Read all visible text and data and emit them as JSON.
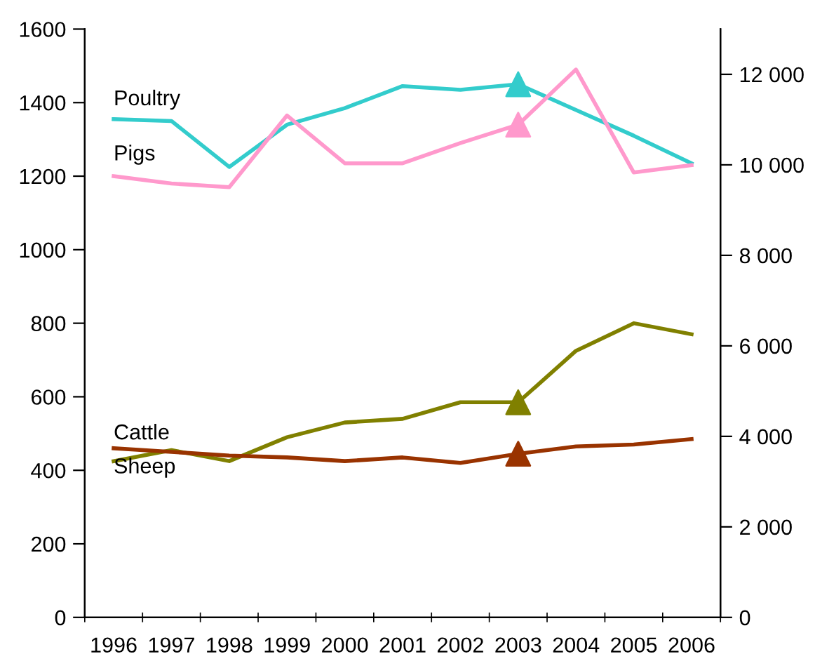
{
  "chart_data": {
    "type": "line",
    "categories": [
      "1996",
      "1997",
      "1998",
      "1999",
      "2000",
      "2001",
      "2002",
      "2003",
      "2004",
      "2005",
      "2006"
    ],
    "ylim": [
      0,
      1600
    ],
    "yticks": [
      0,
      200,
      400,
      600,
      800,
      1000,
      1200,
      1400,
      1600
    ],
    "y2lim": [
      0,
      13000
    ],
    "y2ticks": [
      {
        "value": 0,
        "label": "0"
      },
      {
        "value": 2000,
        "label": "2 000"
      },
      {
        "value": 4000,
        "label": "4 000"
      },
      {
        "value": 6000,
        "label": "6 000"
      },
      {
        "value": 8000,
        "label": "8 000"
      },
      {
        "value": 10000,
        "label": "10 000"
      },
      {
        "value": 12000,
        "label": "12 000"
      }
    ],
    "grid": false,
    "legend": false,
    "line_style": "solid",
    "series": [
      {
        "name": "Poultry",
        "color": "#33cccc",
        "values": [
          1355,
          1350,
          1225,
          1340,
          1385,
          1445,
          1435,
          1450,
          1380,
          1310,
          1235
        ]
      },
      {
        "name": "Pigs",
        "color": "#ff99cc",
        "values": [
          1200,
          1180,
          1170,
          1365,
          1235,
          1235,
          1290,
          1340,
          1490,
          1210,
          1230
        ]
      },
      {
        "name": "Cattle",
        "color": "#808000",
        "values": [
          425,
          455,
          425,
          490,
          530,
          540,
          585,
          585,
          725,
          800,
          770
        ]
      },
      {
        "name": "Sheep",
        "color": "#993300",
        "values": [
          460,
          450,
          440,
          435,
          425,
          435,
          420,
          445,
          465,
          470,
          485
        ]
      },
      {
        "type": "scatter",
        "marker": "triangle",
        "color": "#33cccc",
        "values": [
          null,
          null,
          null,
          null,
          null,
          null,
          null,
          1450,
          null,
          null,
          null
        ]
      },
      {
        "type": "scatter",
        "marker": "triangle",
        "color": "#ff99cc",
        "values": [
          null,
          null,
          null,
          null,
          null,
          null,
          null,
          1340,
          null,
          null,
          null
        ]
      },
      {
        "type": "scatter",
        "marker": "triangle",
        "color": "#808000",
        "values": [
          null,
          null,
          null,
          null,
          null,
          null,
          null,
          585,
          null,
          null,
          null
        ]
      },
      {
        "type": "scatter",
        "marker": "triangle",
        "color": "#993300",
        "values": [
          null,
          null,
          null,
          null,
          null,
          null,
          null,
          445,
          null,
          null,
          null
        ]
      }
    ]
  }
}
